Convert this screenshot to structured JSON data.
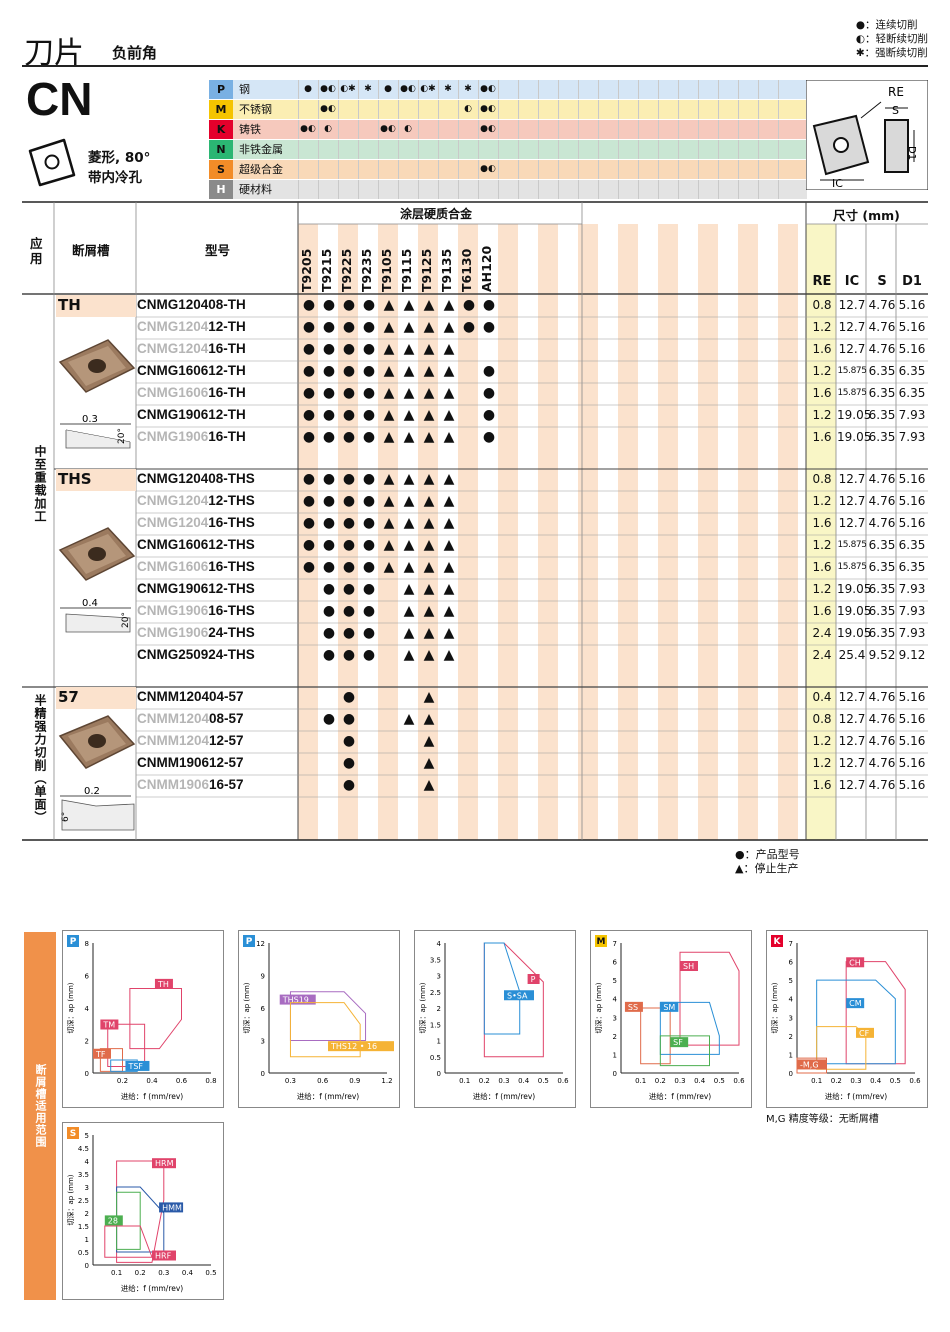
{
  "header": {
    "title": "刀片",
    "subtitle": "负前角",
    "legend": [
      "●：连续切削",
      "◐：轻断续切削",
      "✱：强断续切削"
    ]
  },
  "insert": {
    "code": "CN",
    "shape_line1": "菱形, 80°",
    "shape_line2": "带内冷孔",
    "dim_labels": {
      "re": "RE",
      "s": "S",
      "ic": "IC",
      "d1": "D1"
    }
  },
  "materials": [
    {
      "code": "P",
      "name": "钢",
      "color": "#79b0e3",
      "bg": "#d5e6f6",
      "marks": [
        "●",
        "●◐",
        "◐✱",
        "✱",
        "●",
        "●◐",
        "◐✱",
        "✱",
        "✱",
        "●◐"
      ]
    },
    {
      "code": "M",
      "name": "不锈钢",
      "color": "#f5c400",
      "bg": "#fbeeb3",
      "marks": [
        "",
        "●◐",
        "",
        "",
        "",
        "",
        "",
        "",
        "◐",
        "●◐"
      ]
    },
    {
      "code": "K",
      "name": "铸铁",
      "color": "#e4002b",
      "bg": "#f6c9bd",
      "marks": [
        "●◐",
        "◐",
        "",
        "",
        "●◐",
        "◐",
        "",
        "",
        "",
        "●◐"
      ]
    },
    {
      "code": "N",
      "name": "非铁金属",
      "color": "#2bb673",
      "bg": "#c9e6d3",
      "marks": [
        "",
        "",
        "",
        "",
        "",
        "",
        "",
        "",
        "",
        ""
      ]
    },
    {
      "code": "S",
      "name": "超级合金",
      "color": "#f28c28",
      "bg": "#f9d9b8",
      "marks": [
        "",
        "",
        "",
        "",
        "",
        "",
        "",
        "",
        "",
        "●◐"
      ]
    },
    {
      "code": "H",
      "name": "硬材料",
      "color": "#8a8a8a",
      "bg": "#e3e3e3",
      "marks": [
        "",
        "",
        "",
        "",
        "",
        "",
        "",
        "",
        "",
        ""
      ]
    }
  ],
  "table": {
    "col_application": "应用",
    "col_breaker": "断屑槽",
    "col_model": "型号",
    "col_grade_group": "涂层硬质合金",
    "col_size_group": "尺寸 (mm)",
    "grades": [
      "T9205",
      "T9215",
      "T9225",
      "T9235",
      "T9105",
      "T9115",
      "T9125",
      "T9135",
      "T6130",
      "AH120"
    ],
    "dims": [
      "RE",
      "IC",
      "S",
      "D1"
    ],
    "sections": [
      {
        "application": "中至重载加工",
        "breaker": "TH",
        "angle_value": "0.3",
        "angle_deg": "20°",
        "rows": [
          {
            "dim": "",
            "model": "CNMG120408-TH",
            "marks": [
              "●",
              "●",
              "●",
              "●",
              "▲",
              "▲",
              "▲",
              "▲",
              "●",
              "●"
            ],
            "sizes": [
              "0.8",
              "12.7",
              "4.76",
              "5.16"
            ]
          },
          {
            "dim": "CNMG1204",
            "model": "12-TH",
            "marks": [
              "●",
              "●",
              "●",
              "●",
              "▲",
              "▲",
              "▲",
              "▲",
              "●",
              "●"
            ],
            "sizes": [
              "1.2",
              "12.7",
              "4.76",
              "5.16"
            ]
          },
          {
            "dim": "CNMG1204",
            "model": "16-TH",
            "marks": [
              "●",
              "●",
              "●",
              "●",
              "▲",
              "▲",
              "▲",
              "▲",
              "",
              ""
            ],
            "sizes": [
              "1.6",
              "12.7",
              "4.76",
              "5.16"
            ]
          },
          {
            "dim": "",
            "model": "CNMG160612-TH",
            "marks": [
              "●",
              "●",
              "●",
              "●",
              "▲",
              "▲",
              "▲",
              "▲",
              "",
              "●"
            ],
            "sizes": [
              "1.2",
              "15.875",
              "6.35",
              "6.35"
            ]
          },
          {
            "dim": "CNMG1606",
            "model": "16-TH",
            "marks": [
              "●",
              "●",
              "●",
              "●",
              "▲",
              "▲",
              "▲",
              "▲",
              "",
              "●"
            ],
            "sizes": [
              "1.6",
              "15.875",
              "6.35",
              "6.35"
            ]
          },
          {
            "dim": "",
            "model": "CNMG190612-TH",
            "marks": [
              "●",
              "●",
              "●",
              "●",
              "▲",
              "▲",
              "▲",
              "▲",
              "",
              "●"
            ],
            "sizes": [
              "1.2",
              "19.05",
              "6.35",
              "7.93"
            ]
          },
          {
            "dim": "CNMG1906",
            "model": "16-TH",
            "marks": [
              "●",
              "●",
              "●",
              "●",
              "▲",
              "▲",
              "▲",
              "▲",
              "",
              "●"
            ],
            "sizes": [
              "1.6",
              "19.05",
              "6.35",
              "7.93"
            ]
          }
        ]
      },
      {
        "application": "",
        "breaker": "THS",
        "angle_value": "0.4",
        "angle_deg": "20°",
        "rows": [
          {
            "dim": "",
            "model": "CNMG120408-THS",
            "marks": [
              "●",
              "●",
              "●",
              "●",
              "▲",
              "▲",
              "▲",
              "▲",
              "",
              ""
            ],
            "sizes": [
              "0.8",
              "12.7",
              "4.76",
              "5.16"
            ]
          },
          {
            "dim": "CNMG1204",
            "model": "12-THS",
            "marks": [
              "●",
              "●",
              "●",
              "●",
              "▲",
              "▲",
              "▲",
              "▲",
              "",
              ""
            ],
            "sizes": [
              "1.2",
              "12.7",
              "4.76",
              "5.16"
            ]
          },
          {
            "dim": "CNMG1204",
            "model": "16-THS",
            "marks": [
              "●",
              "●",
              "●",
              "●",
              "▲",
              "▲",
              "▲",
              "▲",
              "",
              ""
            ],
            "sizes": [
              "1.6",
              "12.7",
              "4.76",
              "5.16"
            ]
          },
          {
            "dim": "",
            "model": "CNMG160612-THS",
            "marks": [
              "●",
              "●",
              "●",
              "●",
              "▲",
              "▲",
              "▲",
              "▲",
              "",
              ""
            ],
            "sizes": [
              "1.2",
              "15.875",
              "6.35",
              "6.35"
            ]
          },
          {
            "dim": "CNMG1606",
            "model": "16-THS",
            "marks": [
              "●",
              "●",
              "●",
              "●",
              "▲",
              "▲",
              "▲",
              "▲",
              "",
              ""
            ],
            "sizes": [
              "1.6",
              "15.875",
              "6.35",
              "6.35"
            ]
          },
          {
            "dim": "",
            "model": "CNMG190612-THS",
            "marks": [
              "",
              "●",
              "●",
              "●",
              "",
              "▲",
              "▲",
              "▲",
              "",
              ""
            ],
            "sizes": [
              "1.2",
              "19.05",
              "6.35",
              "7.93"
            ]
          },
          {
            "dim": "CNMG1906",
            "model": "16-THS",
            "marks": [
              "",
              "●",
              "●",
              "●",
              "",
              "▲",
              "▲",
              "▲",
              "",
              ""
            ],
            "sizes": [
              "1.6",
              "19.05",
              "6.35",
              "7.93"
            ]
          },
          {
            "dim": "CNMG1906",
            "model": "24-THS",
            "marks": [
              "",
              "●",
              "●",
              "●",
              "",
              "▲",
              "▲",
              "▲",
              "",
              ""
            ],
            "sizes": [
              "2.4",
              "19.05",
              "6.35",
              "7.93"
            ]
          },
          {
            "dim": "",
            "model": "CNMG250924-THS",
            "marks": [
              "",
              "●",
              "●",
              "●",
              "",
              "▲",
              "▲",
              "▲",
              "",
              ""
            ],
            "sizes": [
              "2.4",
              "25.4",
              "9.52",
              "9.12"
            ]
          }
        ]
      },
      {
        "application": "半精强力切削（单面）",
        "breaker": "57",
        "angle_value": "0.2",
        "angle_deg": "6°",
        "rows": [
          {
            "dim": "",
            "model": "CNMM120404-57",
            "marks": [
              "",
              "",
              "●",
              "",
              "",
              "",
              "▲",
              "",
              "",
              ""
            ],
            "sizes": [
              "0.4",
              "12.7",
              "4.76",
              "5.16"
            ]
          },
          {
            "dim": "CNMM1204",
            "model": "08-57",
            "marks": [
              "",
              "●",
              "●",
              "",
              "",
              "▲",
              "▲",
              "",
              "",
              ""
            ],
            "sizes": [
              "0.8",
              "12.7",
              "4.76",
              "5.16"
            ]
          },
          {
            "dim": "CNMM1204",
            "model": "12-57",
            "marks": [
              "",
              "",
              "●",
              "",
              "",
              "",
              "▲",
              "",
              "",
              ""
            ],
            "sizes": [
              "1.2",
              "12.7",
              "4.76",
              "5.16"
            ]
          },
          {
            "dim": "",
            "model": "CNMM190612-57",
            "marks": [
              "",
              "",
              "●",
              "",
              "",
              "",
              "▲",
              "",
              "",
              ""
            ],
            "sizes": [
              "1.2",
              "12.7",
              "4.76",
              "5.16"
            ]
          },
          {
            "dim": "CNMM1906",
            "model": "16-57",
            "marks": [
              "",
              "",
              "●",
              "",
              "",
              "",
              "▲",
              "",
              "",
              ""
            ],
            "sizes": [
              "1.6",
              "12.7",
              "4.76",
              "5.16"
            ]
          }
        ]
      }
    ]
  },
  "notes": [
    "●：产品型号",
    "▲：停止生产"
  ],
  "side_band": "断屑槽适用范围",
  "mg_note": "M,G 精度等级：无断屑槽",
  "chart_data": [
    {
      "type": "area",
      "material": "P",
      "xlabel": "进给：f (mm/rev)",
      "ylabel": "切深：ap (mm)",
      "xlim": [
        0,
        0.8
      ],
      "ylim": [
        0,
        8
      ],
      "xticks": [
        "0.2",
        "0.4",
        "0.6",
        "0.8"
      ],
      "yticks": [
        "0",
        "2",
        "4",
        "6",
        "8"
      ],
      "series": [
        {
          "name": "TH"
        },
        {
          "name": "TM"
        },
        {
          "name": "TF"
        },
        {
          "name": "TSF"
        }
      ]
    },
    {
      "type": "area",
      "material": "P",
      "xlabel": "进给：f (mm/rev)",
      "ylabel": "切深：ap (mm)",
      "xlim": [
        0.1,
        1.2
      ],
      "ylim": [
        0,
        12
      ],
      "xticks": [
        "0.3",
        "0.6",
        "0.9",
        "1.2"
      ],
      "yticks": [
        "0",
        "3",
        "6",
        "9",
        "12"
      ],
      "series": [
        {
          "name": "THS19"
        },
        {
          "name": "THS12 • 16"
        }
      ]
    },
    {
      "type": "area",
      "material": "",
      "xlabel": "进给：f (mm/rev)",
      "ylabel": "切深：ap (mm)",
      "xlim": [
        0,
        0.6
      ],
      "ylim": [
        0,
        4
      ],
      "xticks": [
        "0.1",
        "0.2",
        "0.3",
        "0.4",
        "0.5",
        "0.6"
      ],
      "yticks": [
        "0",
        "0.5",
        "1",
        "1.5",
        "2",
        "2.5",
        "3",
        "3.5",
        "4"
      ],
      "series": [
        {
          "name": "P"
        },
        {
          "name": "S•SA"
        }
      ]
    },
    {
      "type": "area",
      "material": "M",
      "xlabel": "进给：f (mm/rev)",
      "ylabel": "切深：ap (mm)",
      "xlim": [
        0,
        0.6
      ],
      "ylim": [
        0,
        7
      ],
      "xticks": [
        "0.1",
        "0.2",
        "0.3",
        "0.4",
        "0.5",
        "0.6"
      ],
      "yticks": [
        "0",
        "1",
        "2",
        "3",
        "4",
        "5",
        "6",
        "7"
      ],
      "series": [
        {
          "name": "SH"
        },
        {
          "name": "SS"
        },
        {
          "name": "SM"
        },
        {
          "name": "SF"
        }
      ]
    },
    {
      "type": "area",
      "material": "K",
      "xlabel": "进给：f (mm/rev)",
      "ylabel": "切深：ap (mm)",
      "xlim": [
        0,
        0.6
      ],
      "ylim": [
        0,
        7
      ],
      "xticks": [
        "0.1",
        "0.2",
        "0.3",
        "0.4",
        "0.5",
        "0.6"
      ],
      "yticks": [
        "0",
        "1",
        "2",
        "3",
        "4",
        "5",
        "6",
        "7"
      ],
      "series": [
        {
          "name": "CH"
        },
        {
          "name": "CM"
        },
        {
          "name": "CF"
        },
        {
          "name": "-M,G"
        }
      ]
    },
    {
      "type": "area",
      "material": "S",
      "xlabel": "进给：f (mm/rev)",
      "ylabel": "切深：ap (mm)",
      "xlim": [
        0,
        0.5
      ],
      "ylim": [
        0,
        5
      ],
      "xticks": [
        "0.1",
        "0.2",
        "0.3",
        "0.4",
        "0.5"
      ],
      "yticks": [
        "0",
        "0.5",
        "1",
        "1.5",
        "2",
        "2.5",
        "3",
        "3.5",
        "4",
        "4.5",
        "5"
      ],
      "series": [
        {
          "name": "HRM"
        },
        {
          "name": "HMM"
        },
        {
          "name": "28"
        },
        {
          "name": "HRF"
        }
      ]
    }
  ]
}
